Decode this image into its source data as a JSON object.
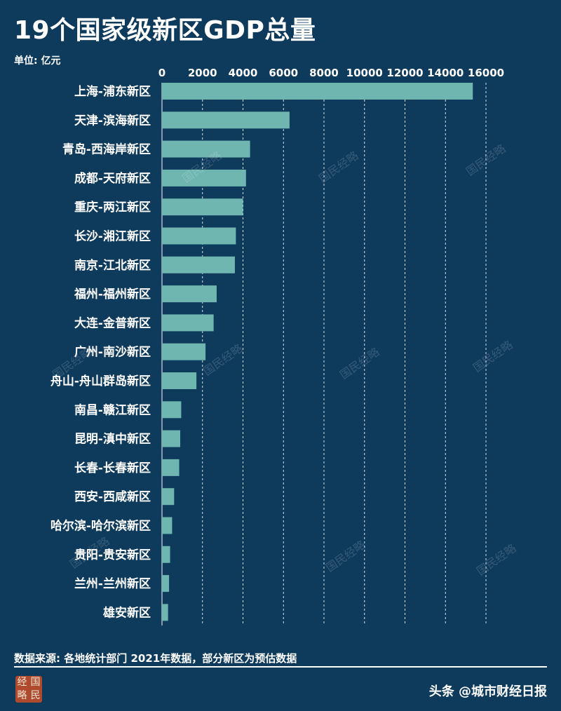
{
  "header": {
    "title": "19个国家级新区GDP总量",
    "unit_label": "单位: 亿元"
  },
  "footer": {
    "source_note": "数据来源: 各地统计部门 2021年数据，部分新区为预估数据",
    "credit": "头条 @城市财经日报",
    "logo_chars": [
      "经",
      "国",
      "略",
      "民"
    ]
  },
  "watermark_text": "国民经略",
  "colors": {
    "background": "#0e3a5c",
    "bar": "#6fb5b0",
    "grid": "#ffffff",
    "text": "#ffffff",
    "logo": "#b04a2f"
  },
  "chart_data": {
    "type": "bar",
    "orientation": "horizontal",
    "categories": [
      "上海-浦东新区",
      "天津-滨海新区",
      "青岛-西海岸新区",
      "成都-天府新区",
      "重庆-两江新区",
      "长沙-湘江新区",
      "南京-江北新区",
      "福州-福州新区",
      "大连-金普新区",
      "广州-南沙新区",
      "舟山-舟山群岛新区",
      "南昌-赣江新区",
      "昆明-滇中新区",
      "长春-长春新区",
      "西安-西咸新区",
      "哈尔滨-哈尔滨新区",
      "贵阳-贵安新区",
      "兰州-兰州新区",
      "雄安新区"
    ],
    "values": [
      15350,
      6300,
      4350,
      4150,
      4000,
      3650,
      3600,
      2700,
      2550,
      2150,
      1700,
      950,
      900,
      850,
      600,
      500,
      400,
      350,
      300
    ],
    "xticks": [
      0,
      2000,
      4000,
      6000,
      8000,
      10000,
      12000,
      14000,
      16000
    ],
    "xlim": [
      0,
      16000
    ],
    "title": "19个国家级新区GDP总量",
    "xlabel": "单位: 亿元",
    "ylabel": "",
    "grid": "vertical dashed",
    "legend": "none"
  }
}
